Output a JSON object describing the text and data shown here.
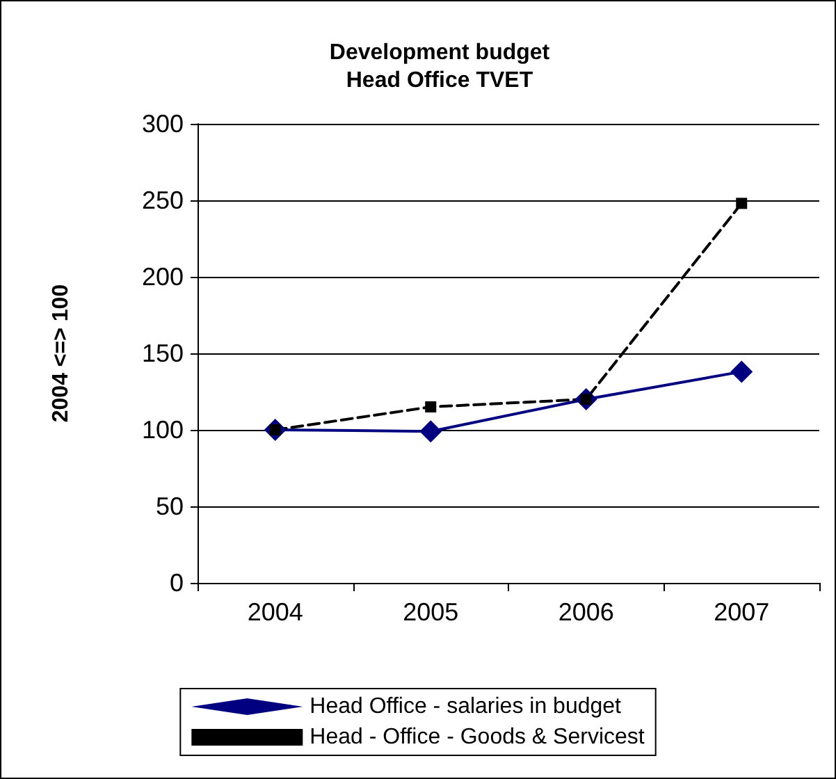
{
  "chart_data": {
    "type": "line",
    "title": "Development budget\nHead Office TVET",
    "ylabel": "2004 <=> 100",
    "categories": [
      "2004",
      "2005",
      "2006",
      "2007"
    ],
    "series": [
      {
        "name": "Head Office - salaries in budget",
        "color": "#000080",
        "values": [
          100,
          99,
          120,
          138
        ],
        "marker": "diamond",
        "line_style": "solid"
      },
      {
        "name": "Head - Office - Goods & Servicest",
        "color": "#000000",
        "values": [
          100,
          115,
          120,
          248
        ],
        "marker": "square",
        "line_style": "dashed"
      }
    ],
    "ylim": [
      0,
      300
    ],
    "yticks": [
      0,
      50,
      100,
      150,
      200,
      250,
      300
    ],
    "grid": "y",
    "legend": "bottom"
  }
}
